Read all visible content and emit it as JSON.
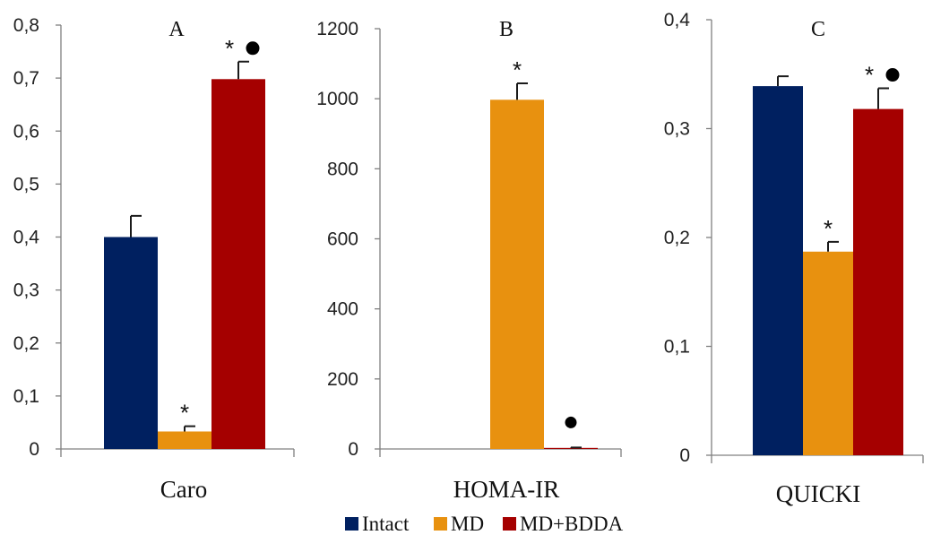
{
  "chart_data": [
    {
      "type": "bar",
      "title": "A",
      "categories": [
        "Caro"
      ],
      "ylim": [
        0,
        0.8
      ],
      "yticks": [
        "0",
        "0,1",
        "0,2",
        "0,3",
        "0,4",
        "0,5",
        "0,6",
        "0,7",
        "0,8"
      ],
      "series": [
        {
          "name": "Intact",
          "values": [
            0.4
          ],
          "error": [
            0.04
          ],
          "marks": [
            "",
            ""
          ]
        },
        {
          "name": "MD",
          "values": [
            0.033
          ],
          "error": [
            0.01
          ],
          "marks": [
            "*",
            ""
          ]
        },
        {
          "name": "MD+BDDA",
          "values": [
            0.698
          ],
          "error": [
            0.033
          ],
          "marks": [
            "*",
            "●"
          ]
        }
      ]
    },
    {
      "type": "bar",
      "title": "B",
      "categories": [
        "HOMA-IR"
      ],
      "ylim": [
        0,
        1200
      ],
      "yticks": [
        "0",
        "200",
        "400",
        "600",
        "800",
        "1000",
        "1200"
      ],
      "series": [
        {
          "name": "Intact",
          "values": [
            0
          ],
          "error": [
            0
          ],
          "marks": [
            "",
            ""
          ]
        },
        {
          "name": "MD",
          "values": [
            997
          ],
          "error": [
            47
          ],
          "marks": [
            "*",
            ""
          ]
        },
        {
          "name": "MD+BDDA",
          "values": [
            3
          ],
          "error": [
            1
          ],
          "marks": [
            "",
            "●"
          ]
        }
      ]
    },
    {
      "type": "bar",
      "title": "C",
      "categories": [
        "QUICKI"
      ],
      "ylim": [
        0,
        0.4
      ],
      "yticks": [
        "0",
        "0,1",
        "0,2",
        "0,3",
        "0,4"
      ],
      "series": [
        {
          "name": "Intact",
          "values": [
            0.339
          ],
          "error": [
            0.009
          ],
          "marks": [
            "",
            ""
          ]
        },
        {
          "name": "MD",
          "values": [
            0.187
          ],
          "error": [
            0.009
          ],
          "marks": [
            "*",
            ""
          ]
        },
        {
          "name": "MD+BDDA",
          "values": [
            0.318
          ],
          "error": [
            0.019
          ],
          "marks": [
            "*",
            "●"
          ]
        }
      ]
    }
  ],
  "legend": {
    "position": "bottom",
    "items": [
      {
        "label": "Intact",
        "color": "#002060"
      },
      {
        "label": "MD",
        "color": "#e8910f"
      },
      {
        "label": "MD+BDDA",
        "color": "#a50000"
      }
    ]
  }
}
